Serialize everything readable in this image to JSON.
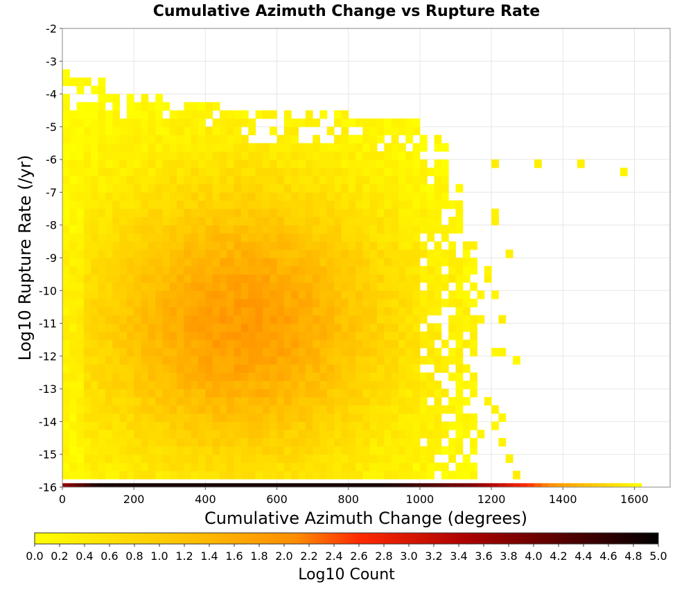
{
  "chart_data": {
    "type": "heatmap",
    "title": "Cumulative Azimuth Change vs Rupture Rate",
    "xlabel": "Cumulative Azimuth Change (degrees)",
    "ylabel": "Log10 Rupture Rate (/yr)",
    "xlim": [
      0,
      1700
    ],
    "ylim": [
      -16,
      -2
    ],
    "x_ticks": [
      0,
      200,
      400,
      600,
      800,
      1000,
      1200,
      1400,
      1600
    ],
    "y_ticks": [
      -2,
      -3,
      -4,
      -5,
      -6,
      -7,
      -8,
      -9,
      -10,
      -11,
      -12,
      -13,
      -14,
      -15,
      -16
    ],
    "grid": true,
    "colorbar": {
      "label": "Log10 Count",
      "range": [
        0.0,
        5.0
      ],
      "ticks": [
        "0.0",
        "0.2",
        "0.4",
        "0.6",
        "0.8",
        "1.0",
        "1.2",
        "1.4",
        "1.6",
        "1.8",
        "2.0",
        "2.2",
        "2.4",
        "2.6",
        "2.8",
        "3.0",
        "3.2",
        "3.4",
        "3.6",
        "3.8",
        "4.0",
        "4.2",
        "4.4",
        "4.6",
        "4.8",
        "5.0"
      ],
      "colors": [
        "#ffff00",
        "#ffa500",
        "#ff2000",
        "#a00000",
        "#000000"
      ]
    },
    "bin_width_x": 20,
    "bin_height_y": 0.25,
    "description_of_density": "Dense core of counts ~1.4-1.9 (log10) centered near 450-550 degrees and -10 to -12 log rate; sparse yellow (0-0.6) bins at edges extending to ~1140 degrees, isolated bins up to ~1560 degrees; bottom row at -16 reaches log10 count ~4.8 for 100-900 degrees and tails off to 0 near 1620 degrees."
  }
}
